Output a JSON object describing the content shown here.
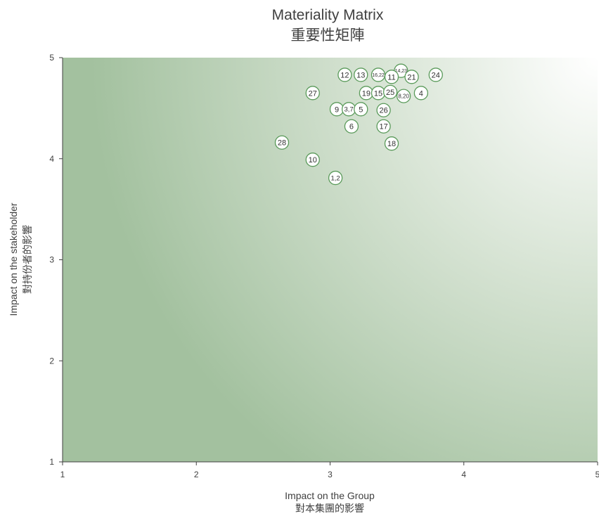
{
  "chart_data": {
    "type": "scatter",
    "title": "Materiality Matrix",
    "subtitle": "重要性矩陣",
    "xlabel": "Impact on the Group",
    "xlabel_sub": "對本集團的影響",
    "ylabel": "Impact on the stakeholder",
    "ylabel_sub": "對持份者的影響",
    "xlim": [
      1,
      5
    ],
    "ylim": [
      1,
      5
    ],
    "xticks": [
      "1",
      "2",
      "3",
      "4",
      "5"
    ],
    "yticks": [
      "1",
      "2",
      "3",
      "4",
      "5"
    ],
    "grid": false,
    "legend": "none",
    "colors": {
      "background_dark": "#a3c19f",
      "background_light": "#ffffff",
      "marker_stroke": "#5a9a5a",
      "marker_fill": "#ffffff",
      "axis": "#404040"
    },
    "points": [
      {
        "label": "12",
        "x": 3.11,
        "y": 4.83
      },
      {
        "label": "13",
        "x": 3.23,
        "y": 4.83
      },
      {
        "label": "16,22",
        "x": 3.36,
        "y": 4.83
      },
      {
        "label": "14,23",
        "x": 3.53,
        "y": 4.87
      },
      {
        "label": "11",
        "x": 3.46,
        "y": 4.81
      },
      {
        "label": "21",
        "x": 3.61,
        "y": 4.81
      },
      {
        "label": "24",
        "x": 3.79,
        "y": 4.83
      },
      {
        "label": "27",
        "x": 2.87,
        "y": 4.65
      },
      {
        "label": "19",
        "x": 3.27,
        "y": 4.65
      },
      {
        "label": "15",
        "x": 3.36,
        "y": 4.65
      },
      {
        "label": "25",
        "x": 3.45,
        "y": 4.66
      },
      {
        "label": "8,20",
        "x": 3.55,
        "y": 4.62
      },
      {
        "label": "4",
        "x": 3.68,
        "y": 4.65
      },
      {
        "label": "9",
        "x": 3.05,
        "y": 4.49
      },
      {
        "label": "3,7",
        "x": 3.14,
        "y": 4.49
      },
      {
        "label": "5",
        "x": 3.23,
        "y": 4.49
      },
      {
        "label": "26",
        "x": 3.4,
        "y": 4.48
      },
      {
        "label": "6",
        "x": 3.16,
        "y": 4.32
      },
      {
        "label": "17",
        "x": 3.4,
        "y": 4.32
      },
      {
        "label": "28",
        "x": 2.64,
        "y": 4.16
      },
      {
        "label": "18",
        "x": 3.46,
        "y": 4.15
      },
      {
        "label": "10",
        "x": 2.87,
        "y": 3.99
      },
      {
        "label": "1,2",
        "x": 3.04,
        "y": 3.81
      }
    ]
  }
}
